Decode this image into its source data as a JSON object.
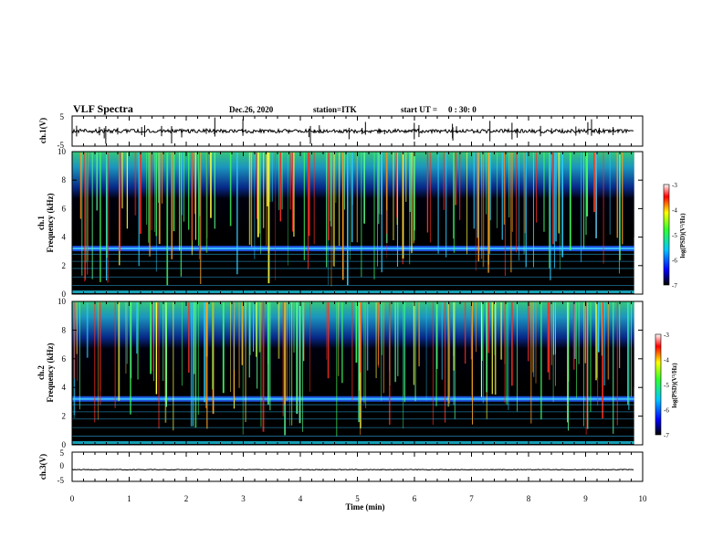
{
  "header": {
    "title": "VLF Spectra",
    "date": "Dec.26, 2020",
    "station": "station=ITK",
    "start_label": "start UT =",
    "start_time": "0 : 30: 0"
  },
  "chart_data": [
    {
      "id": "ch1-waveform",
      "type": "line",
      "ylabel": "ch.1(V)",
      "ylim": [
        -5,
        5
      ],
      "yticks": [
        "5",
        "-5"
      ],
      "xlim": [
        0,
        10
      ],
      "trace_level": 0,
      "trace_color": "#000000"
    },
    {
      "id": "ch1-spectrogram",
      "type": "heatmap",
      "ylabel": "ch.1\nFrequency (kHz)",
      "ylim": [
        0,
        10
      ],
      "yticks": [
        "0",
        "2",
        "4",
        "6",
        "8",
        "10"
      ],
      "xlim": [
        0,
        10
      ],
      "colorbar": {
        "label": "log(PSD)(V²/Hz)",
        "range": [
          -7,
          -3
        ],
        "ticks": [
          "-3",
          "-4",
          "-5",
          "-6",
          "-7"
        ],
        "colors": [
          "#000000",
          "#0000ff",
          "#00c8ff",
          "#30ff30",
          "#ffff00",
          "#ff0000",
          "#ffffff"
        ]
      }
    },
    {
      "id": "ch2-spectrogram",
      "type": "heatmap",
      "ylabel": "ch.2\nFrequency (kHz)",
      "ylim": [
        0,
        10
      ],
      "yticks": [
        "0",
        "2",
        "4",
        "6",
        "8",
        "10"
      ],
      "xlim": [
        0,
        10
      ],
      "colorbar": {
        "label": "log(PSD)(V²/Hz)",
        "range": [
          -7,
          -3
        ],
        "ticks": [
          "-3",
          "-4",
          "-5",
          "-6",
          "-7"
        ],
        "colors": [
          "#000000",
          "#0000ff",
          "#00c8ff",
          "#30ff30",
          "#ffff00",
          "#ff0000",
          "#ffffff"
        ]
      }
    },
    {
      "id": "ch3-waveform",
      "type": "line",
      "ylabel": "ch.3(V)",
      "ylim": [
        -5,
        5
      ],
      "yticks": [
        "5",
        "0",
        "-5"
      ],
      "xlim": [
        0,
        10
      ],
      "trace_level": -1,
      "trace_color": "#000000"
    }
  ],
  "x_axis": {
    "label": "Time (min)",
    "range": [
      0,
      10
    ],
    "ticks": [
      "0",
      "1",
      "2",
      "3",
      "4",
      "5",
      "6",
      "7",
      "8",
      "9",
      "10"
    ],
    "data_end": 9.85
  }
}
